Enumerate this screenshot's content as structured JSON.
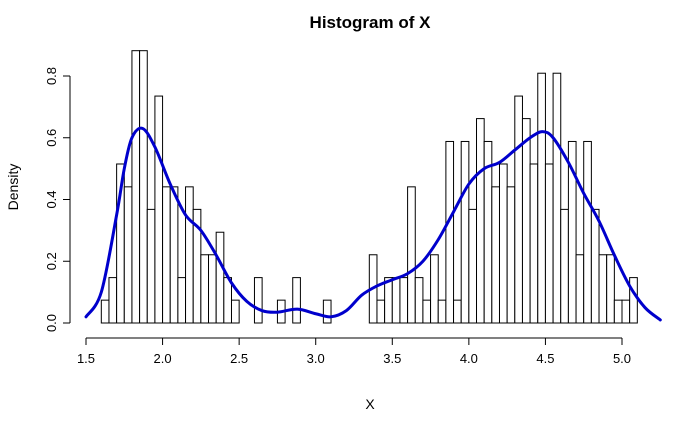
{
  "chart_data": {
    "type": "bar",
    "subtype": "histogram-with-density",
    "title": "Histogram of X",
    "xlabel": "X",
    "ylabel": "Density",
    "xlim": [
      1.5,
      5.25
    ],
    "ylim": [
      0,
      0.8
    ],
    "x_ticks": [
      {
        "value": 1.5,
        "label": "1.5"
      },
      {
        "value": 2.0,
        "label": "2.0"
      },
      {
        "value": 2.5,
        "label": "2.5"
      },
      {
        "value": 3.0,
        "label": "3.0"
      },
      {
        "value": 3.5,
        "label": "3.5"
      },
      {
        "value": 4.0,
        "label": "4.0"
      },
      {
        "value": 4.5,
        "label": "4.5"
      },
      {
        "value": 5.0,
        "label": "5.0"
      }
    ],
    "y_ticks": [
      {
        "value": 0.0,
        "label": "0.0"
      },
      {
        "value": 0.2,
        "label": "0.2"
      },
      {
        "value": 0.4,
        "label": "0.4"
      },
      {
        "value": 0.6,
        "label": "0.6"
      },
      {
        "value": 0.8,
        "label": "0.8"
      }
    ],
    "bin_start": 1.6,
    "bin_width": 0.05,
    "values": [
      0.074,
      0.147,
      0.515,
      0.441,
      0.882,
      0.882,
      0.368,
      0.735,
      0.441,
      0.441,
      0.147,
      0.441,
      0.368,
      0.221,
      0.221,
      0.294,
      0.147,
      0.074,
      0.0,
      0.0,
      0.147,
      0.0,
      0.0,
      0.074,
      0.0,
      0.147,
      0.0,
      0.0,
      0.0,
      0.074,
      0.0,
      0.0,
      0.0,
      0.0,
      0.0,
      0.221,
      0.074,
      0.147,
      0.147,
      0.147,
      0.441,
      0.147,
      0.074,
      0.221,
      0.074,
      0.588,
      0.074,
      0.588,
      0.368,
      0.662,
      0.588,
      0.441,
      0.515,
      0.441,
      0.735,
      0.662,
      0.515,
      0.809,
      0.515,
      0.809,
      0.368,
      0.588,
      0.221,
      0.588,
      0.368,
      0.221,
      0.221,
      0.074,
      0.074,
      0.147
    ],
    "bar_fill": "#ffffff",
    "bar_stroke": "#000000",
    "density_curve": {
      "color": "#0000cc",
      "x": [
        1.5,
        1.6,
        1.7,
        1.75,
        1.8,
        1.87,
        1.95,
        2.05,
        2.15,
        2.25,
        2.35,
        2.45,
        2.55,
        2.65,
        2.75,
        2.88,
        3.0,
        3.1,
        3.2,
        3.3,
        3.4,
        3.5,
        3.6,
        3.7,
        3.8,
        3.9,
        4.0,
        4.1,
        4.2,
        4.3,
        4.4,
        4.48,
        4.55,
        4.65,
        4.75,
        4.85,
        4.95,
        5.05,
        5.15,
        5.25
      ],
      "y": [
        0.02,
        0.1,
        0.35,
        0.5,
        0.6,
        0.63,
        0.57,
        0.45,
        0.35,
        0.3,
        0.22,
        0.13,
        0.07,
        0.04,
        0.035,
        0.045,
        0.03,
        0.02,
        0.04,
        0.09,
        0.12,
        0.14,
        0.16,
        0.2,
        0.27,
        0.36,
        0.45,
        0.5,
        0.52,
        0.56,
        0.6,
        0.62,
        0.6,
        0.52,
        0.42,
        0.33,
        0.22,
        0.12,
        0.05,
        0.01
      ]
    }
  }
}
